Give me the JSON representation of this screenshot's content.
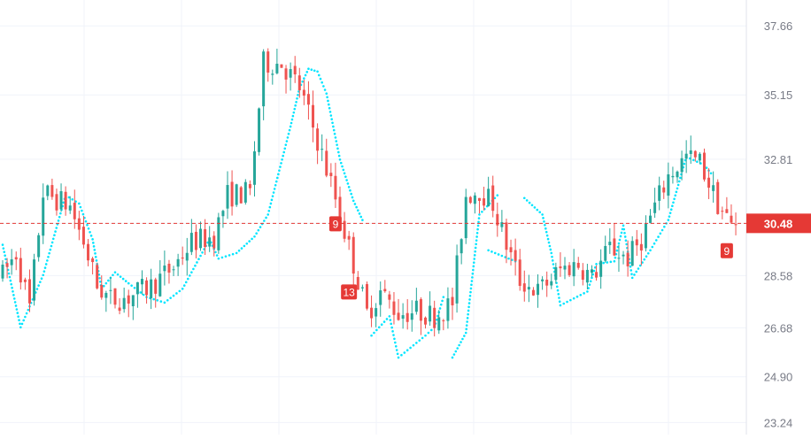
{
  "chart_data": {
    "type": "candlestick",
    "title": "",
    "xlabel": "",
    "ylabel": "",
    "ylim": [
      22.8,
      38.6
    ],
    "y_ticks": [
      "37.66",
      "35.15",
      "32.81",
      "30.48",
      "28.58",
      "26.68",
      "24.90",
      "23.24"
    ],
    "y_tick_values": [
      37.66,
      35.15,
      32.81,
      30.48,
      28.58,
      26.68,
      24.9,
      23.24
    ],
    "grid": true,
    "legend": "none",
    "current_price": {
      "label": "30.48",
      "value": 30.48
    },
    "markers": [
      {
        "label": "9",
        "bar": 74,
        "value": 30.48
      },
      {
        "label": "13",
        "bar": 77,
        "value": 28.0
      },
      {
        "label": "9",
        "bar": 161,
        "value": 29.5
      }
    ],
    "colors": {
      "up": "#26a69a",
      "down": "#ef5350",
      "sar": "#00e5ff",
      "price_line": "#e53935",
      "price_badge": "#e53935",
      "marker": "#e53935",
      "grid": "#f0f3fa",
      "axis_text": "#787b86"
    },
    "candles_summary_path": [
      [
        0,
        28.6
      ],
      [
        3,
        29.4
      ],
      [
        6,
        27.4
      ],
      [
        9,
        31.6
      ],
      [
        15,
        31.1
      ],
      [
        18,
        29.8
      ],
      [
        21,
        28.2
      ],
      [
        24,
        27.7
      ],
      [
        28,
        27.8
      ],
      [
        33,
        28.2
      ],
      [
        38,
        28.9
      ],
      [
        42,
        29.8
      ],
      [
        47,
        30.0
      ],
      [
        50,
        31.5
      ],
      [
        55,
        31.6
      ],
      [
        58,
        36.3
      ],
      [
        62,
        36.3
      ],
      [
        66,
        35.4
      ],
      [
        70,
        33.5
      ],
      [
        74,
        31.4
      ],
      [
        78,
        29.0
      ],
      [
        81,
        27.2
      ],
      [
        84,
        28.0
      ],
      [
        88,
        27.2
      ],
      [
        92,
        27.3
      ],
      [
        96,
        27.1
      ],
      [
        100,
        27.6
      ],
      [
        103,
        31.5
      ],
      [
        106,
        31.7
      ],
      [
        109,
        31.2
      ],
      [
        112,
        29.7
      ],
      [
        115,
        28.4
      ],
      [
        119,
        28.0
      ],
      [
        124,
        28.8
      ],
      [
        128,
        29.0
      ],
      [
        131,
        28.5
      ],
      [
        135,
        29.6
      ],
      [
        139,
        29.2
      ],
      [
        142,
        29.9
      ],
      [
        145,
        31.1
      ],
      [
        148,
        32.2
      ],
      [
        152,
        32.9
      ],
      [
        155,
        32.7
      ],
      [
        159,
        31.2
      ],
      [
        162,
        30.4
      ],
      [
        163,
        30.5
      ]
    ],
    "sar_summary_path": [
      [
        0,
        29.7
      ],
      [
        4,
        26.7
      ],
      [
        9,
        28.6
      ],
      [
        14,
        31.5
      ],
      [
        17,
        31.2
      ],
      [
        20,
        29.9
      ],
      [
        22,
        28.1
      ],
      [
        25,
        28.7
      ],
      [
        28,
        28.3
      ],
      [
        32,
        27.8
      ],
      [
        36,
        27.6
      ],
      [
        40,
        28.1
      ],
      [
        44,
        29.3
      ],
      [
        46,
        29.9
      ],
      [
        48,
        29.2
      ],
      [
        52,
        29.4
      ],
      [
        56,
        30.0
      ],
      [
        59,
        30.8
      ],
      [
        64,
        34.0
      ],
      [
        66,
        35.4
      ],
      [
        68,
        36.1
      ],
      [
        70,
        36.0
      ],
      [
        72,
        35.2
      ],
      [
        75,
        32.8
      ],
      [
        78,
        31.3
      ],
      [
        80,
        30.6
      ],
      [
        82,
        26.4
      ],
      [
        86,
        27.1
      ],
      [
        88,
        25.6
      ],
      [
        94,
        26.4
      ],
      [
        96,
        26.7
      ],
      [
        98,
        27.8
      ],
      [
        100,
        25.6
      ],
      [
        103,
        26.5
      ],
      [
        106,
        30.8
      ],
      [
        110,
        31.5
      ],
      [
        108,
        29.5
      ],
      [
        114,
        29.1
      ],
      [
        116,
        31.4
      ],
      [
        120,
        30.8
      ],
      [
        122,
        29.4
      ],
      [
        124,
        27.5
      ],
      [
        130,
        28.0
      ],
      [
        132,
        29.0
      ],
      [
        136,
        29.1
      ],
      [
        138,
        30.4
      ],
      [
        140,
        28.5
      ],
      [
        144,
        29.5
      ],
      [
        148,
        30.6
      ],
      [
        152,
        32.9
      ],
      [
        156,
        32.6
      ],
      [
        158,
        32.2
      ]
    ]
  }
}
